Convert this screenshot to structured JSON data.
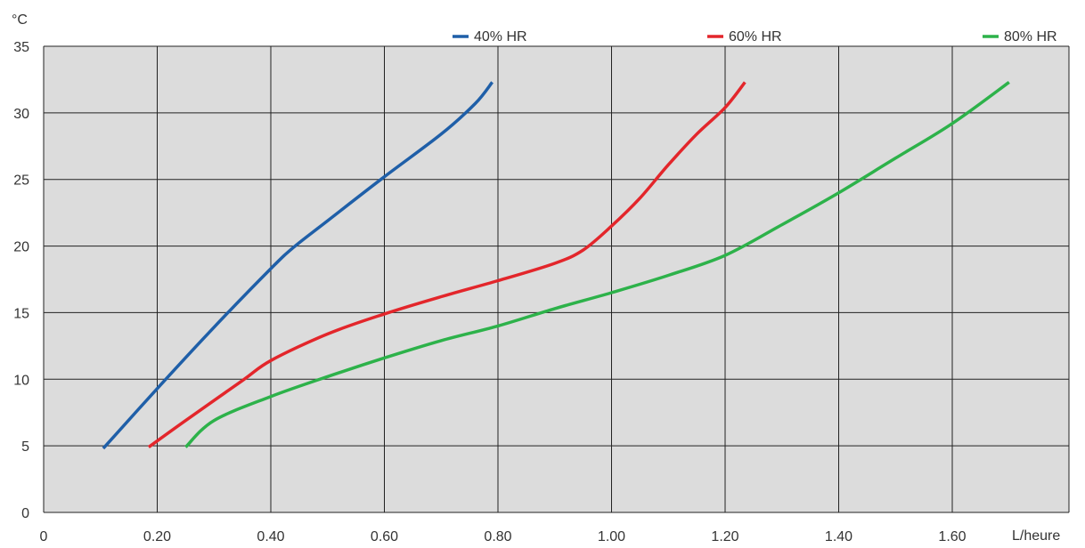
{
  "chart_data": {
    "type": "line",
    "xlabel": "L/heure",
    "ylabel": "°C",
    "xlim": [
      0,
      1.8
    ],
    "ylim": [
      0,
      35
    ],
    "x_ticks": [
      0,
      0.2,
      0.4,
      0.6,
      0.8,
      1.0,
      1.2,
      1.4,
      1.6
    ],
    "x_tick_labels": [
      "0",
      "0.20",
      "0.40",
      "0.60",
      "0.80",
      "1.00",
      "1.20",
      "1.40",
      "1.60"
    ],
    "y_ticks": [
      0,
      5,
      10,
      15,
      20,
      25,
      30,
      35
    ],
    "y_tick_labels": [
      "0",
      "5",
      "10",
      "15",
      "20",
      "25",
      "30",
      "35"
    ],
    "grid": true,
    "plot_background": "#dcdcdc",
    "legend_position": "top",
    "series": [
      {
        "name": "40% HR",
        "color": "#1f5fa8",
        "points": [
          [
            0.105,
            4.8
          ],
          [
            0.2,
            9.3
          ],
          [
            0.3,
            13.9
          ],
          [
            0.4,
            18.3
          ],
          [
            0.44,
            19.9
          ],
          [
            0.5,
            21.9
          ],
          [
            0.6,
            25.2
          ],
          [
            0.7,
            28.4
          ],
          [
            0.76,
            30.7
          ],
          [
            0.79,
            32.3
          ]
        ]
      },
      {
        "name": "60% HR",
        "color": "#e3262b",
        "points": [
          [
            0.185,
            4.9
          ],
          [
            0.25,
            6.9
          ],
          [
            0.35,
            9.9
          ],
          [
            0.4,
            11.4
          ],
          [
            0.5,
            13.4
          ],
          [
            0.6,
            14.9
          ],
          [
            0.7,
            16.2
          ],
          [
            0.8,
            17.4
          ],
          [
            0.9,
            18.7
          ],
          [
            0.95,
            19.7
          ],
          [
            1.0,
            21.5
          ],
          [
            1.05,
            23.6
          ],
          [
            1.1,
            26.1
          ],
          [
            1.15,
            28.4
          ],
          [
            1.2,
            30.4
          ],
          [
            1.235,
            32.3
          ]
        ]
      },
      {
        "name": "80% HR",
        "color": "#2db24a",
        "points": [
          [
            0.25,
            4.9
          ],
          [
            0.3,
            6.9
          ],
          [
            0.4,
            8.7
          ],
          [
            0.5,
            10.2
          ],
          [
            0.6,
            11.6
          ],
          [
            0.7,
            12.9
          ],
          [
            0.8,
            14.0
          ],
          [
            0.9,
            15.3
          ],
          [
            1.0,
            16.5
          ],
          [
            1.1,
            17.8
          ],
          [
            1.2,
            19.3
          ],
          [
            1.3,
            21.6
          ],
          [
            1.4,
            24.0
          ],
          [
            1.5,
            26.6
          ],
          [
            1.6,
            29.2
          ],
          [
            1.7,
            32.3
          ]
        ]
      }
    ]
  }
}
